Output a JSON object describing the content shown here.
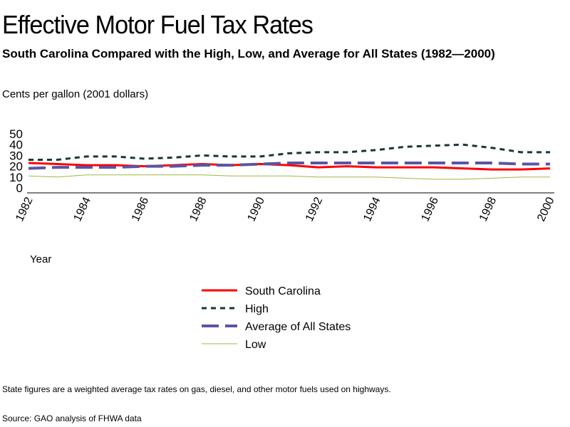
{
  "chart_data": {
    "type": "line",
    "title": "Effective Motor Fuel Tax Rates",
    "subtitle": "South Carolina Compared with the High, Low, and Average for All States (1982—2000)",
    "ylabel": "Cents per gallon   (2001 dollars)",
    "xlabel": "Year",
    "ylim": [
      0,
      50
    ],
    "yticks": [
      "0",
      "10",
      "20",
      "30",
      "40",
      "50"
    ],
    "xticks": [
      "1982",
      "1984",
      "1986",
      "1988",
      "1990",
      "1992",
      "1994",
      "1996",
      "1998",
      "2000"
    ],
    "x": [
      1982,
      1983,
      1984,
      1985,
      1986,
      1987,
      1988,
      1989,
      1990,
      1991,
      1992,
      1993,
      1994,
      1995,
      1996,
      1997,
      1998,
      1999,
      2000
    ],
    "series": [
      {
        "name": "South Carolina",
        "color": "#ff0000",
        "dash": "",
        "values": [
          23,
          22,
          21,
          21,
          20,
          21,
          22,
          21,
          22,
          21,
          19,
          20,
          19,
          19,
          19,
          18,
          17,
          17,
          18
        ]
      },
      {
        "name": "High",
        "color": "#173a2a",
        "dash": "7,6",
        "values": [
          26,
          26,
          29,
          29,
          27,
          28,
          30,
          29,
          29,
          32,
          33,
          33,
          35,
          38,
          39,
          40,
          37,
          33,
          33
        ]
      },
      {
        "name": "Average of All States",
        "color": "#5a55a5",
        "dash": "24,9",
        "values": [
          18,
          19,
          19,
          19,
          20,
          20,
          21,
          21,
          22,
          23,
          23,
          23,
          23,
          23,
          23,
          23,
          23,
          22,
          22
        ]
      },
      {
        "name": "Low",
        "color": "#a0b840",
        "dash": "",
        "values": [
          11,
          10,
          12,
          12,
          12,
          12,
          12,
          11,
          11,
          11,
          10,
          10,
          10,
          9,
          8,
          8,
          9,
          10,
          10
        ]
      }
    ],
    "legend_position": "bottom-center",
    "grid": false
  },
  "notes": {
    "note": "State figures are a weighted average tax rates on gas, diesel, and other motor fuels used on highways.",
    "source": "Source: GAO analysis of FHWA data"
  }
}
